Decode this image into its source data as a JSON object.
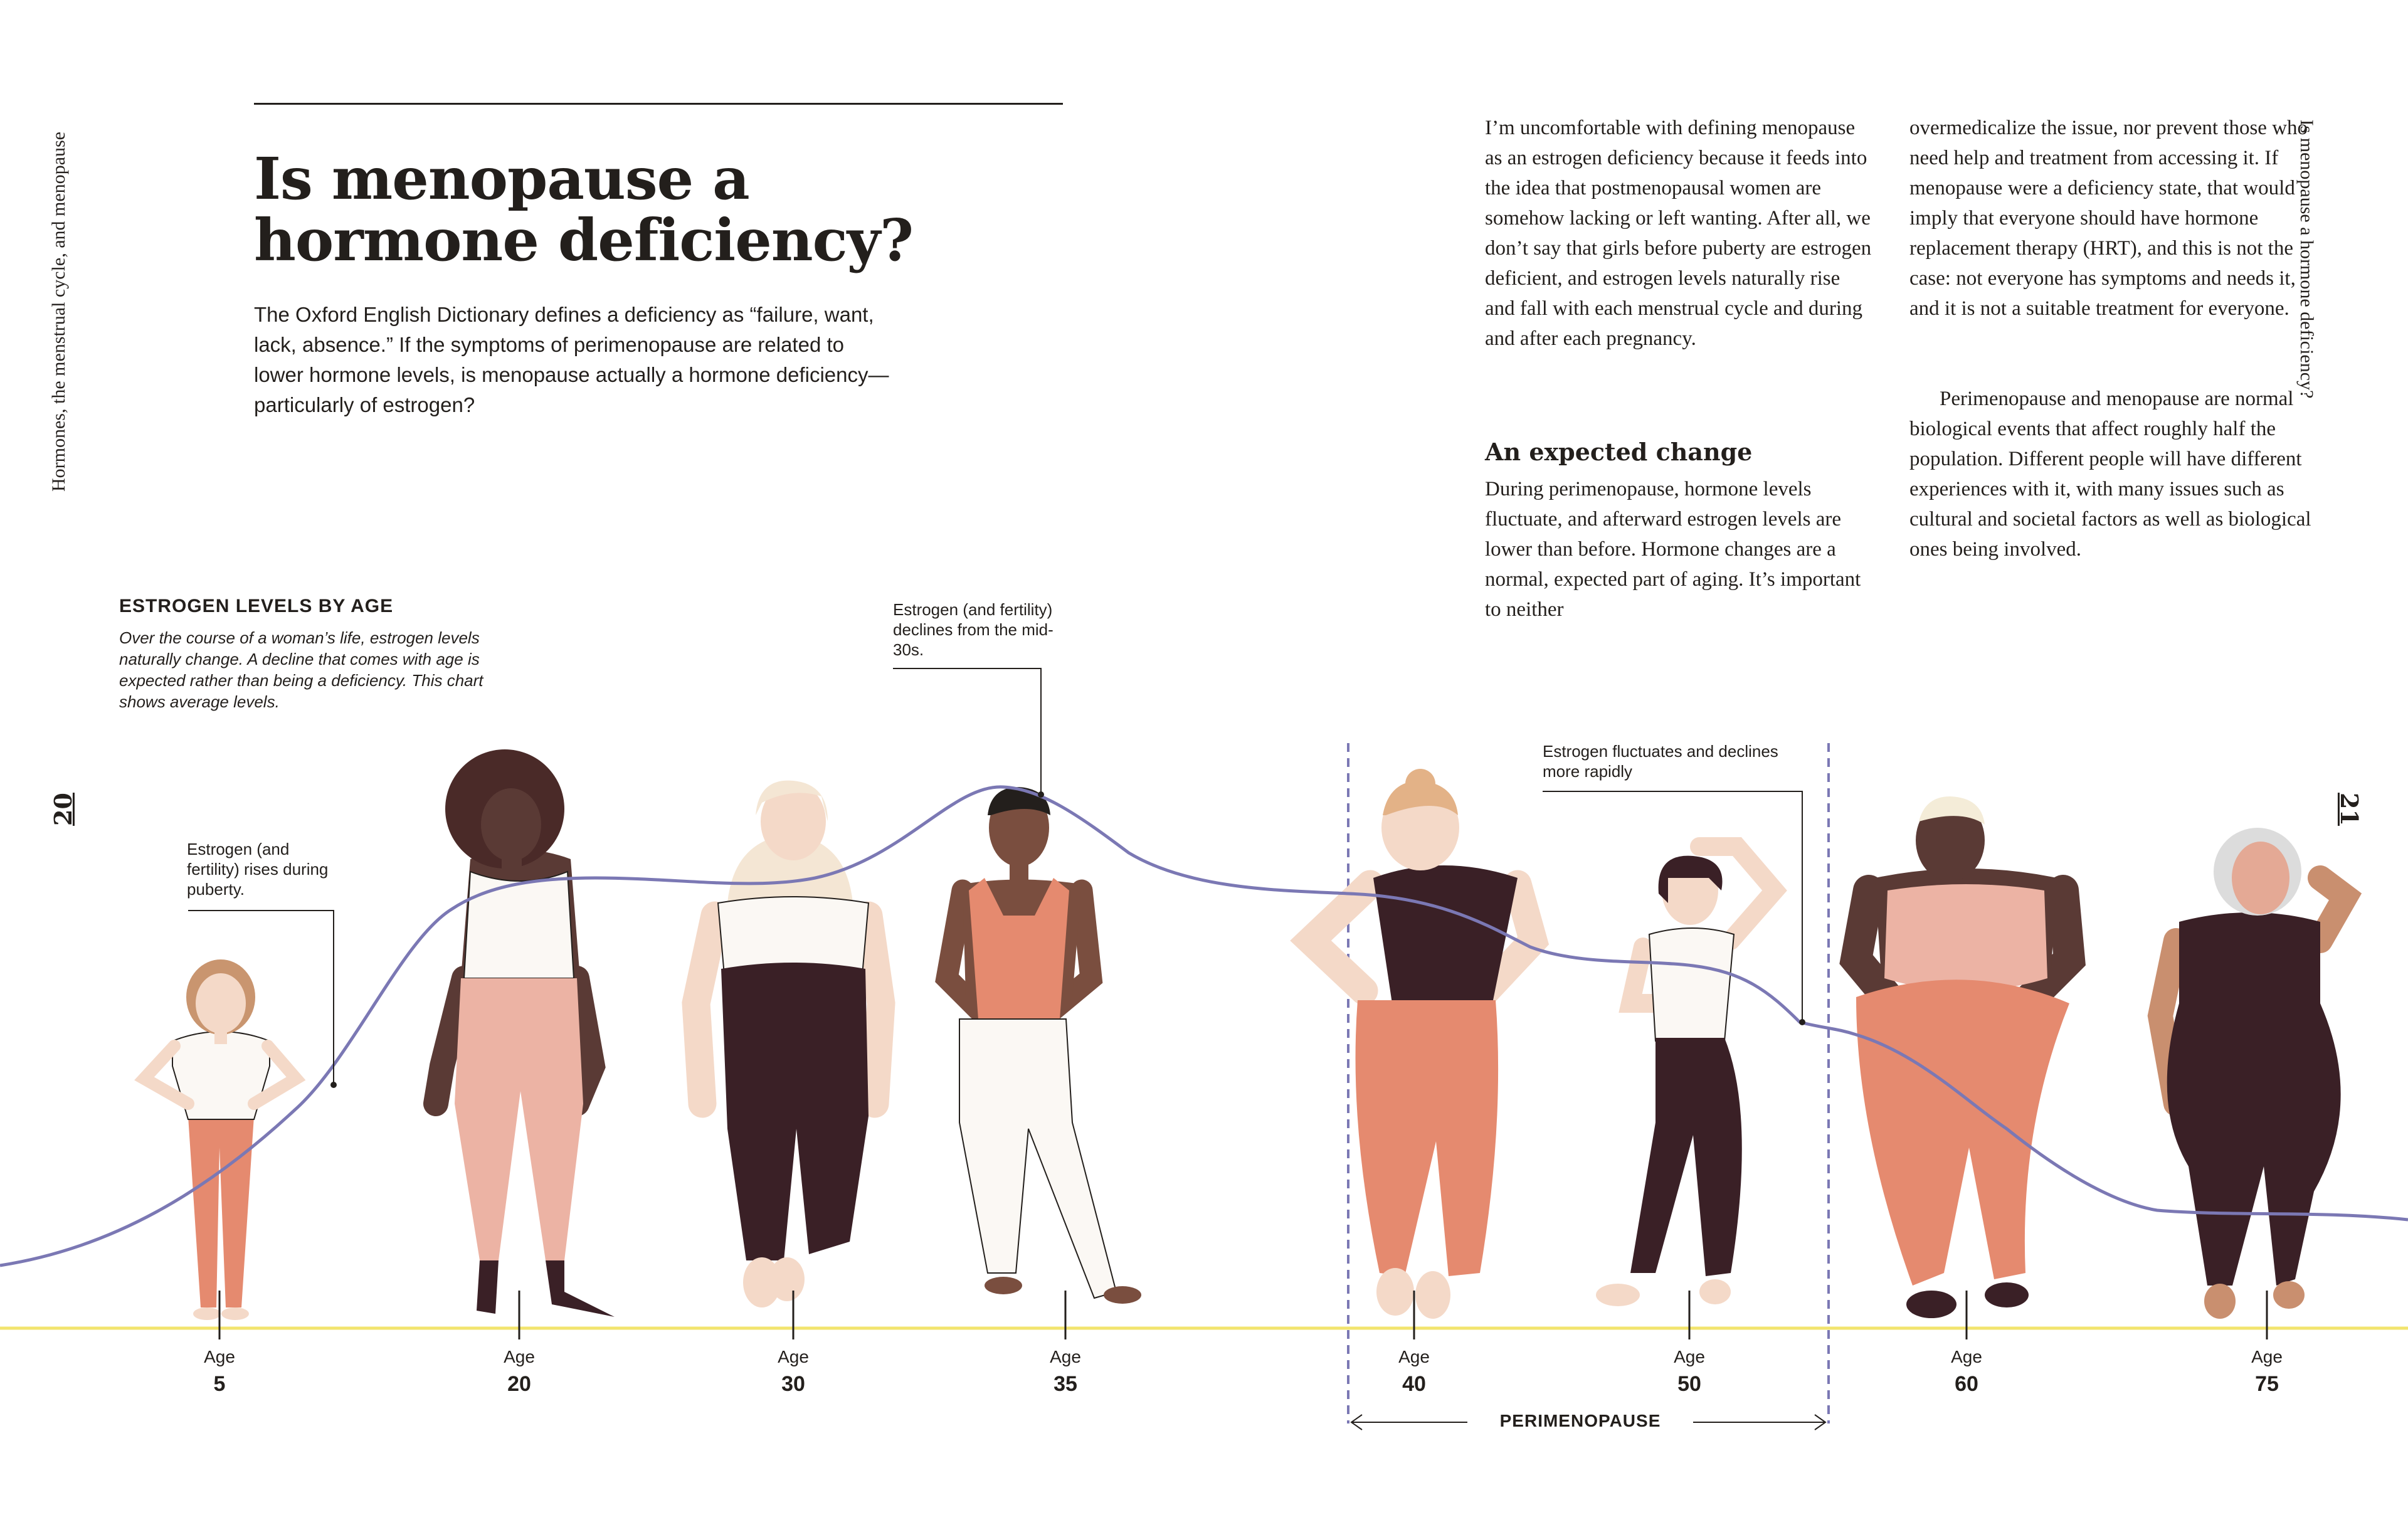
{
  "page": {
    "running_head_left": "Hormones, the menstrual cycle, and menopause",
    "running_head_right": "Is menopause a hormone deficiency?",
    "page_left": "20",
    "page_right": "21"
  },
  "title_line1": "Is menopause a",
  "title_line2": "hormone deficiency?",
  "intro": "The Oxford English Dictionary defines a deficiency as “failure, want, lack, absence.” If the symptoms of perimenopause are related to lower hormone levels, is menopause actually a hormone deficiency—particularly of estrogen?",
  "body": {
    "col1_p1": "I’m uncomfortable with defining menopause as an estrogen deficiency because it feeds into the idea that postmenopausal women are somehow lacking or left wanting. After all, we don’t say that girls before puberty are estrogen deficient, and estrogen levels naturally rise and fall with each menstrual cycle and during and after each pregnancy.",
    "subhead": "An expected change",
    "col1_p2": "During perimenopause, hormone levels fluctuate, and afterward estrogen levels are lower than before. Hormone changes are a normal, expected part of aging. It’s important to neither",
    "col2_p1": "overmedicalize the issue, nor prevent those who need help and treatment from accessing it. If menopause were a deficiency state, that would imply that everyone should have hormone replacement therapy (HRT), and this is not the case: not everyone has symptoms and needs it, and it is not a suitable treatment for everyone.",
    "col2_p2": "Perimenopause and menopause are normal biological events that affect roughly half the population. Different people will have different experiences with it, with many issues such as cultural and societal factors as well as biological ones being involved."
  },
  "chart": {
    "heading": "ESTROGEN LEVELS BY AGE",
    "note": "Over the course of a woman’s life, estrogen levels naturally change. A decline that comes with age is expected rather than being a deficiency. This chart shows average levels.",
    "callout_puberty": "Estrogen (and fertility) rises during puberty.",
    "callout_mid30s": "Estrogen (and fertility) declines from the mid-30s.",
    "callout_peri": "Estrogen fluctuates and declines more rapidly",
    "age_word": "Age",
    "ages": [
      "5",
      "20",
      "30",
      "35",
      "40",
      "50",
      "60",
      "75"
    ],
    "perimenopause_label": "PERIMENOPAUSE",
    "line_color": "#7b78b4",
    "baseline_color": "#f2e46e"
  },
  "figure_colors": {
    "skin_light": "#f4d9c8",
    "skin_mid": "#c98f6f",
    "skin_dark": "#5a3a35",
    "coral": "#e58a6f",
    "pink": "#ecb3a4",
    "plum": "#3a2026",
    "white": "#fbf8f4"
  }
}
